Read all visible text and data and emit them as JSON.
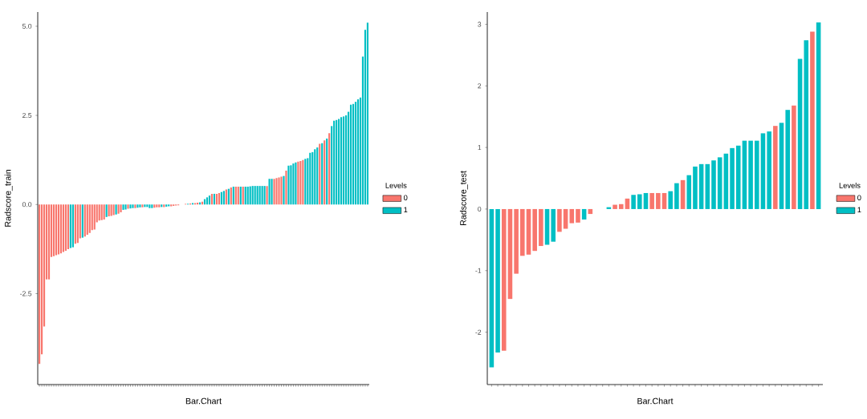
{
  "chart_data": [
    {
      "type": "bar",
      "xlabel": "Bar.Chart",
      "ylabel": "Radscore_train",
      "legend_title": "Levels",
      "legend": "right",
      "tick_labels": "y",
      "categories": [
        null,
        null,
        null,
        null,
        null,
        null,
        null,
        null,
        null,
        null,
        null,
        null,
        null,
        null,
        null,
        null,
        null,
        null,
        null,
        null,
        null,
        null,
        null,
        null,
        null,
        null,
        null,
        null,
        null,
        null,
        null,
        null,
        null,
        null,
        null,
        null,
        null,
        null,
        null,
        null,
        null,
        null,
        null,
        null,
        null,
        null,
        null,
        null,
        null,
        null,
        null,
        null,
        null,
        null,
        null,
        null,
        null,
        null,
        null,
        null,
        null,
        null,
        null,
        null,
        null,
        null,
        null,
        null,
        null,
        null,
        null,
        null,
        null,
        null,
        null,
        null,
        null,
        null,
        null,
        null,
        null,
        null,
        null,
        null,
        null,
        null,
        null,
        null,
        null,
        null,
        null,
        null,
        null,
        null,
        null,
        null,
        null,
        null,
        null,
        null,
        null,
        null,
        null,
        null,
        null,
        null,
        null,
        null,
        null,
        null,
        null,
        null,
        null,
        null,
        null,
        null,
        null,
        null,
        null,
        null,
        null,
        null,
        null,
        null,
        null,
        null,
        null,
        null,
        null,
        null,
        null,
        null,
        null,
        null,
        null,
        null,
        null,
        null
      ],
      "ylim": [
        -5.05,
        5.4
      ],
      "yticks": [
        {
          "value": -2.5,
          "label": "-2.5"
        },
        {
          "value": 0,
          "label": "0.0"
        },
        {
          "value": 2.5,
          "label": "2.5"
        },
        {
          "value": 5,
          "label": "5.0"
        }
      ],
      "series": [
        {
          "name": "0",
          "color": "#f8766d",
          "values": [
            -4.47,
            -4.2,
            -3.42,
            -2.1,
            -2.1,
            -1.47,
            -1.45,
            -1.42,
            -1.4,
            -1.37,
            -1.33,
            -1.3,
            -1.25,
            null,
            null,
            -1.1,
            -1.08,
            -0.95,
            null,
            -0.9,
            -0.85,
            -0.8,
            -0.72,
            -0.7,
            -0.5,
            -0.45,
            -0.44,
            -0.42,
            null,
            -0.33,
            -0.32,
            -0.3,
            null,
            -0.26,
            -0.22,
            null,
            null,
            -0.12,
            null,
            null,
            -0.1,
            null,
            null,
            -0.08,
            null,
            null,
            null,
            null,
            -0.09,
            -0.08,
            -0.08,
            null,
            -0.07,
            null,
            null,
            -0.05,
            -0.04,
            -0.03,
            -0.02,
            0,
            null,
            0.02,
            null,
            0.03,
            null,
            0.04,
            0.05,
            null,
            0.08,
            null,
            null,
            null,
            0.3,
            null,
            0.3,
            0.32,
            null,
            null,
            0.42,
            null,
            0.48,
            null,
            0.5,
            0.5,
            null,
            0.5,
            null,
            null,
            null,
            null,
            null,
            null,
            null,
            null,
            null,
            0.52,
            null,
            null,
            0.72,
            0.74,
            0.76,
            0.78,
            null,
            0.95,
            null,
            null,
            null,
            null,
            1.2,
            1.22,
            1.25,
            null,
            null,
            null,
            null,
            null,
            null,
            1.7,
            null,
            1.8,
            null,
            2.0,
            null,
            null,
            null,
            null,
            null,
            null,
            null,
            null,
            null,
            null,
            null,
            null,
            null,
            null,
            null,
            null
          ]
        },
        {
          "name": "1",
          "color": "#00bfc4",
          "values": [
            null,
            null,
            null,
            null,
            null,
            null,
            null,
            null,
            null,
            null,
            null,
            null,
            null,
            -1.22,
            -1.2,
            null,
            null,
            null,
            -0.93,
            null,
            null,
            null,
            null,
            null,
            null,
            null,
            null,
            null,
            -0.35,
            null,
            null,
            null,
            -0.28,
            null,
            null,
            -0.15,
            -0.14,
            null,
            -0.11,
            -0.1,
            null,
            -0.09,
            -0.08,
            null,
            -0.07,
            -0.07,
            -0.1,
            -0.1,
            null,
            null,
            null,
            -0.07,
            null,
            -0.06,
            -0.05,
            null,
            null,
            null,
            null,
            null,
            null,
            null,
            0.02,
            null,
            0.04,
            null,
            null,
            0.06,
            null,
            0.15,
            0.2,
            0.25,
            null,
            0.3,
            null,
            null,
            0.35,
            0.38,
            null,
            0.44,
            null,
            0.5,
            null,
            null,
            0.5,
            null,
            0.5,
            0.5,
            0.51,
            0.52,
            0.52,
            0.52,
            0.52,
            0.52,
            0.52,
            null,
            0.72,
            0.72,
            null,
            null,
            null,
            null,
            0.8,
            null,
            1.09,
            1.1,
            1.15,
            1.18,
            null,
            null,
            null,
            1.28,
            1.3,
            1.45,
            1.47,
            1.55,
            1.6,
            null,
            1.72,
            null,
            1.85,
            null,
            2.2,
            2.35,
            2.37,
            2.4,
            2.45,
            2.47,
            2.5,
            2.6,
            2.8,
            2.82,
            2.88,
            2.95,
            3.0,
            4.15,
            4.9,
            5.1
          ]
        }
      ]
    },
    {
      "type": "bar",
      "xlabel": "Bar.Chart",
      "ylabel": "Radscore_test",
      "legend_title": "Levels",
      "legend": "right",
      "tick_labels": "y",
      "categories": [
        null,
        null,
        null,
        null,
        null,
        null,
        null,
        null,
        null,
        null,
        null,
        null,
        null,
        null,
        null,
        null,
        null,
        null,
        null,
        null,
        null,
        null,
        null,
        null,
        null,
        null,
        null,
        null,
        null,
        null,
        null,
        null,
        null,
        null,
        null,
        null,
        null,
        null,
        null,
        null,
        null,
        null,
        null,
        null,
        null,
        null,
        null,
        null,
        null,
        null,
        null,
        null,
        null,
        null
      ],
      "ylim": [
        -2.85,
        3.2
      ],
      "yticks": [
        -2,
        -1,
        0,
        1,
        2,
        3
      ],
      "series": [
        {
          "name": "0",
          "color": "#f8766d",
          "values": [
            null,
            null,
            -2.3,
            -1.46,
            -1.05,
            -0.76,
            -0.74,
            -0.68,
            -0.6,
            null,
            null,
            -0.37,
            -0.32,
            -0.23,
            -0.22,
            null,
            -0.08,
            0,
            0,
            null,
            0.07,
            0.08,
            0.17,
            null,
            null,
            null,
            0.26,
            0.26,
            0.26,
            null,
            null,
            0.47,
            null,
            null,
            null,
            null,
            null,
            null,
            null,
            null,
            null,
            null,
            null,
            null,
            null,
            null,
            1.35,
            null,
            null,
            1.68,
            null,
            null,
            2.88,
            null
          ]
        },
        {
          "name": "1",
          "color": "#00bfc4",
          "values": [
            -2.57,
            -2.33,
            null,
            null,
            null,
            null,
            null,
            null,
            null,
            -0.58,
            -0.53,
            null,
            null,
            null,
            null,
            -0.17,
            null,
            null,
            null,
            0.03,
            null,
            null,
            null,
            0.23,
            0.24,
            0.26,
            null,
            null,
            null,
            0.29,
            0.42,
            null,
            0.55,
            0.69,
            0.73,
            0.73,
            0.79,
            0.84,
            0.9,
            0.99,
            1.03,
            1.11,
            1.11,
            1.11,
            1.23,
            1.26,
            null,
            1.4,
            1.61,
            null,
            2.44,
            2.74,
            null,
            3.03
          ]
        }
      ]
    }
  ]
}
